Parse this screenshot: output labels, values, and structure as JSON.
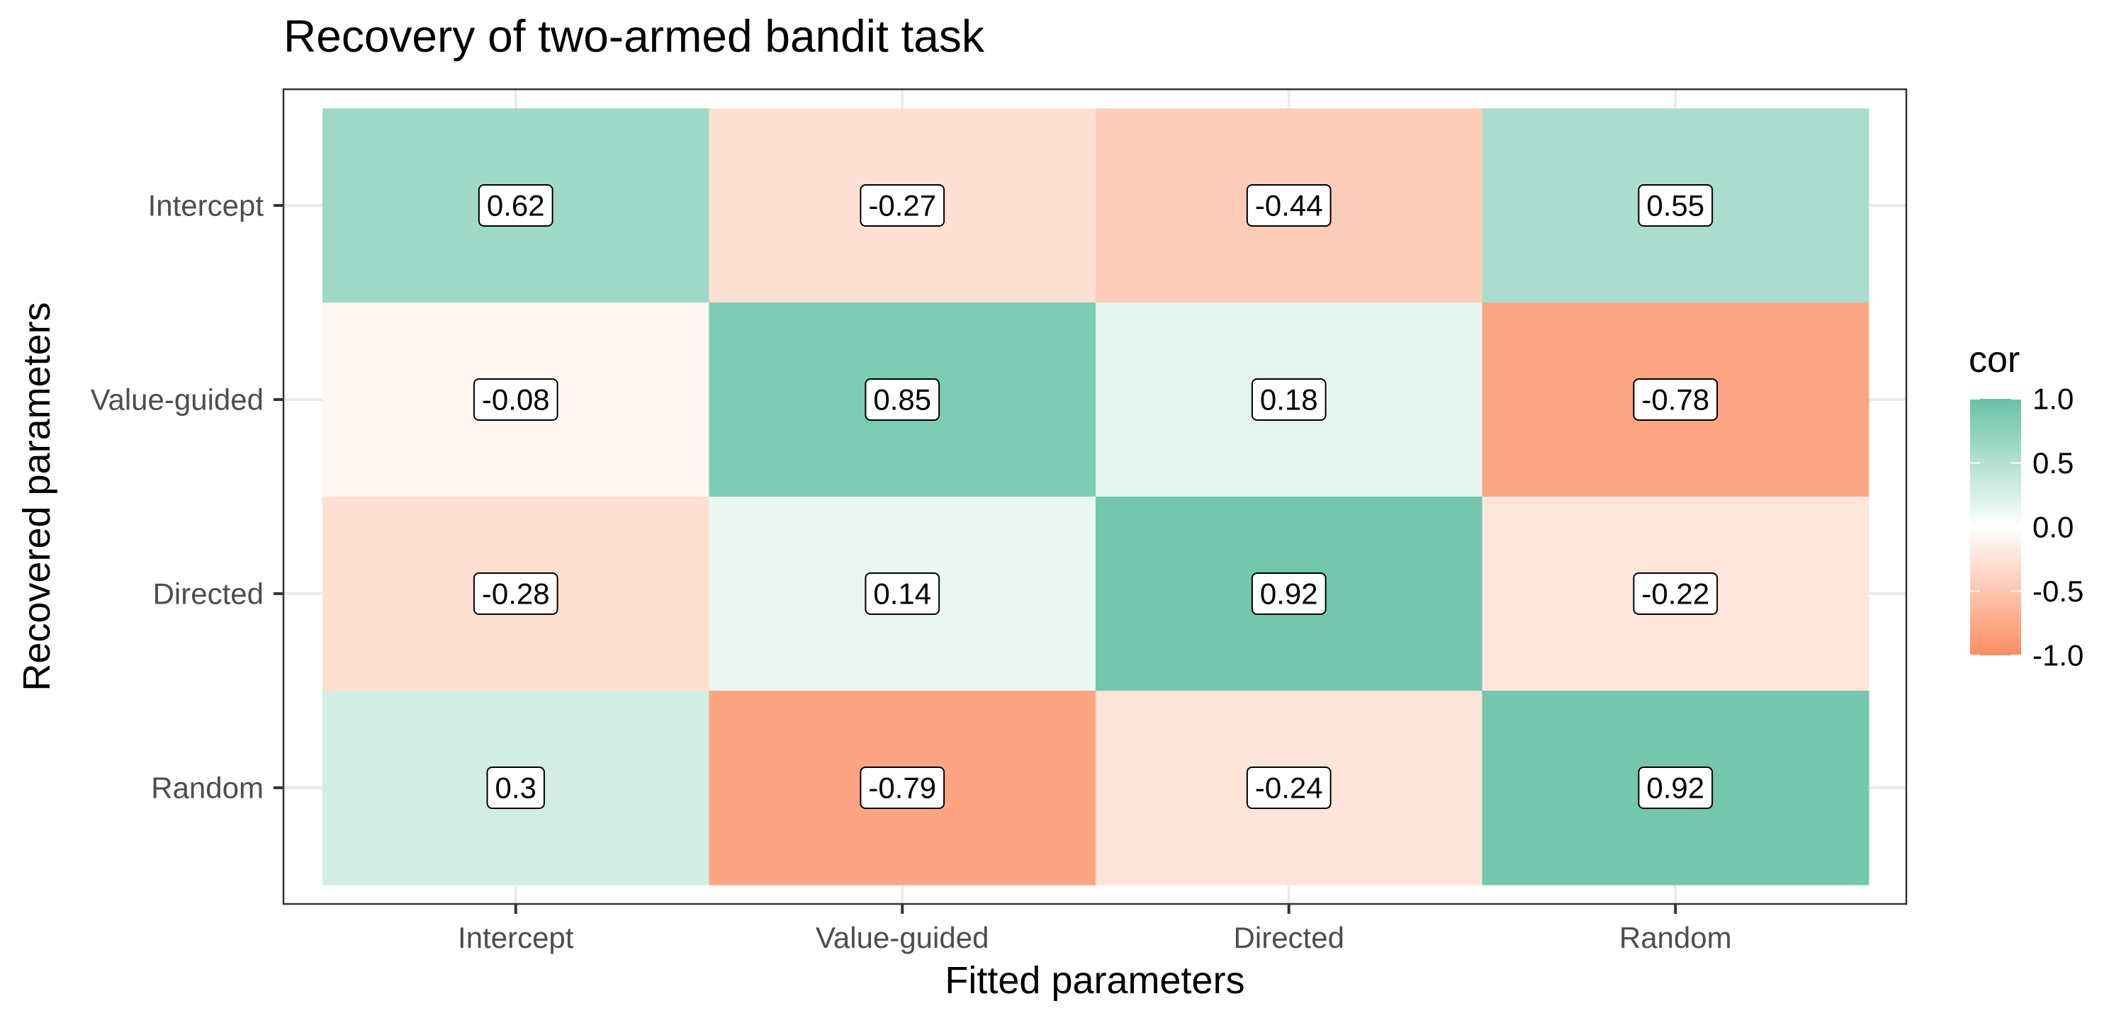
{
  "chart_data": {
    "type": "heatmap",
    "title": "Recovery of two-armed bandit task",
    "xlabel": "Fitted parameters",
    "ylabel": "Recovered parameters",
    "x_categories": [
      "Intercept",
      "Value-guided",
      "Directed",
      "Random"
    ],
    "y_categories": [
      "Intercept",
      "Value-guided",
      "Directed",
      "Random"
    ],
    "values": [
      [
        0.62,
        -0.27,
        -0.44,
        0.55
      ],
      [
        -0.08,
        0.85,
        0.18,
        -0.78
      ],
      [
        -0.28,
        0.14,
        0.92,
        -0.22
      ],
      [
        0.3,
        -0.79,
        -0.24,
        0.92
      ]
    ],
    "value_labels": [
      [
        "0.62",
        "-0.27",
        "-0.44",
        "0.55"
      ],
      [
        "-0.08",
        "0.85",
        "0.18",
        "-0.78"
      ],
      [
        "-0.28",
        "0.14",
        "0.92",
        "-0.22"
      ],
      [
        "0.3",
        "-0.79",
        "-0.24",
        "0.92"
      ]
    ],
    "legend": {
      "title": "cor",
      "position": "right",
      "limits": [
        -1.0,
        1.0
      ],
      "ticks": [
        1.0,
        0.5,
        0.0,
        -0.5,
        -1.0
      ],
      "tick_labels": [
        "1.0",
        "0.5",
        "0.0",
        "-0.5",
        "-1.0"
      ],
      "colors": {
        "low": "#FC8D62",
        "mid": "#FFFFFF",
        "high": "#66C2A5"
      }
    },
    "grid": true,
    "panel_border": true
  }
}
